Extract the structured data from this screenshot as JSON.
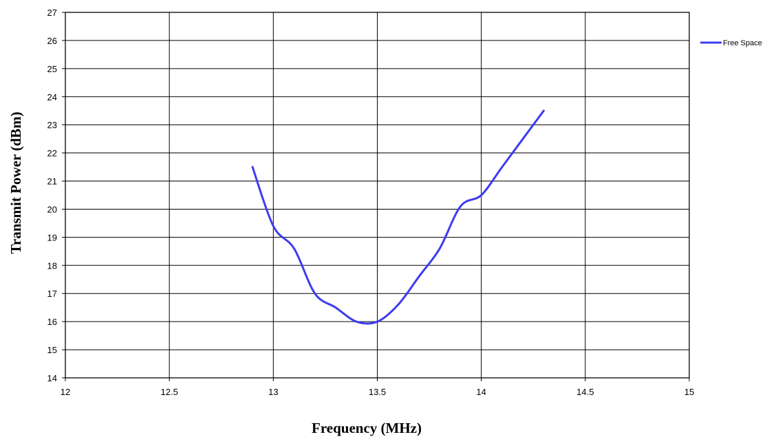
{
  "chart_data": {
    "type": "line",
    "xlabel": "Frequency  (MHz)",
    "ylabel": "Transmit Power (dBm)",
    "xlim": [
      12,
      15
    ],
    "ylim": [
      14,
      27
    ],
    "x_ticks": [
      "12",
      "12.5",
      "13",
      "13.5",
      "14",
      "14.5",
      "15"
    ],
    "y_ticks": [
      "14",
      "15",
      "16",
      "17",
      "18",
      "19",
      "20",
      "21",
      "22",
      "23",
      "24",
      "25",
      "26",
      "27"
    ],
    "grid": true,
    "legend": "right",
    "series": [
      {
        "name": "Free Space",
        "color": "#3c3cf0",
        "x": [
          12.9,
          13.0,
          13.1,
          13.2,
          13.3,
          13.4,
          13.5,
          13.6,
          13.7,
          13.8,
          13.9,
          14.0,
          14.1,
          14.2,
          14.3
        ],
        "y": [
          21.5,
          19.4,
          18.6,
          17.0,
          16.5,
          16.0,
          16.0,
          16.6,
          17.6,
          18.6,
          20.1,
          20.5,
          21.5,
          22.5,
          23.5
        ]
      }
    ]
  }
}
